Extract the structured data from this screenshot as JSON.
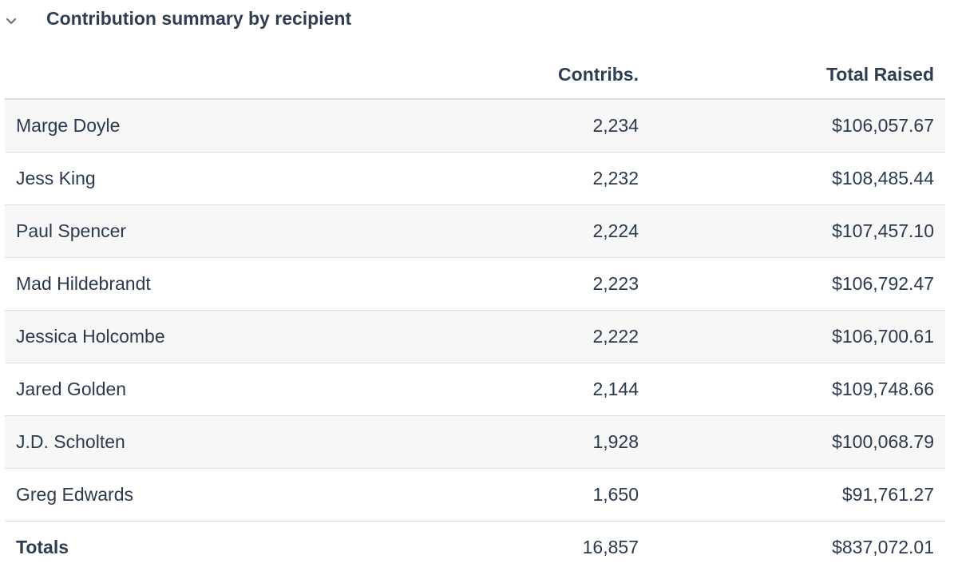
{
  "section": {
    "title": "Contribution summary by recipient",
    "toggle_icon": "chevron-down-icon"
  },
  "table": {
    "columns": {
      "recipient": "",
      "contribs": "Contribs.",
      "total_raised": "Total Raised"
    },
    "rows": [
      {
        "name": "Marge Doyle",
        "contribs": "2,234",
        "total": "$106,057.67"
      },
      {
        "name": "Jess King",
        "contribs": "2,232",
        "total": "$108,485.44"
      },
      {
        "name": "Paul Spencer",
        "contribs": "2,224",
        "total": "$107,457.10"
      },
      {
        "name": "Mad Hildebrandt",
        "contribs": "2,223",
        "total": "$106,792.47"
      },
      {
        "name": "Jessica Holcombe",
        "contribs": "2,222",
        "total": "$106,700.61"
      },
      {
        "name": "Jared Golden",
        "contribs": "2,144",
        "total": "$109,748.66"
      },
      {
        "name": "J.D. Scholten",
        "contribs": "1,928",
        "total": "$100,068.79"
      },
      {
        "name": "Greg Edwards",
        "contribs": "1,650",
        "total": "$91,761.27"
      }
    ],
    "totals": {
      "label": "Totals",
      "contribs": "16,857",
      "total": "$837,072.01"
    }
  },
  "colors": {
    "text": "#2b3a4d",
    "row_stripe": "#f7f7f8",
    "border": "#dcdfe3"
  }
}
